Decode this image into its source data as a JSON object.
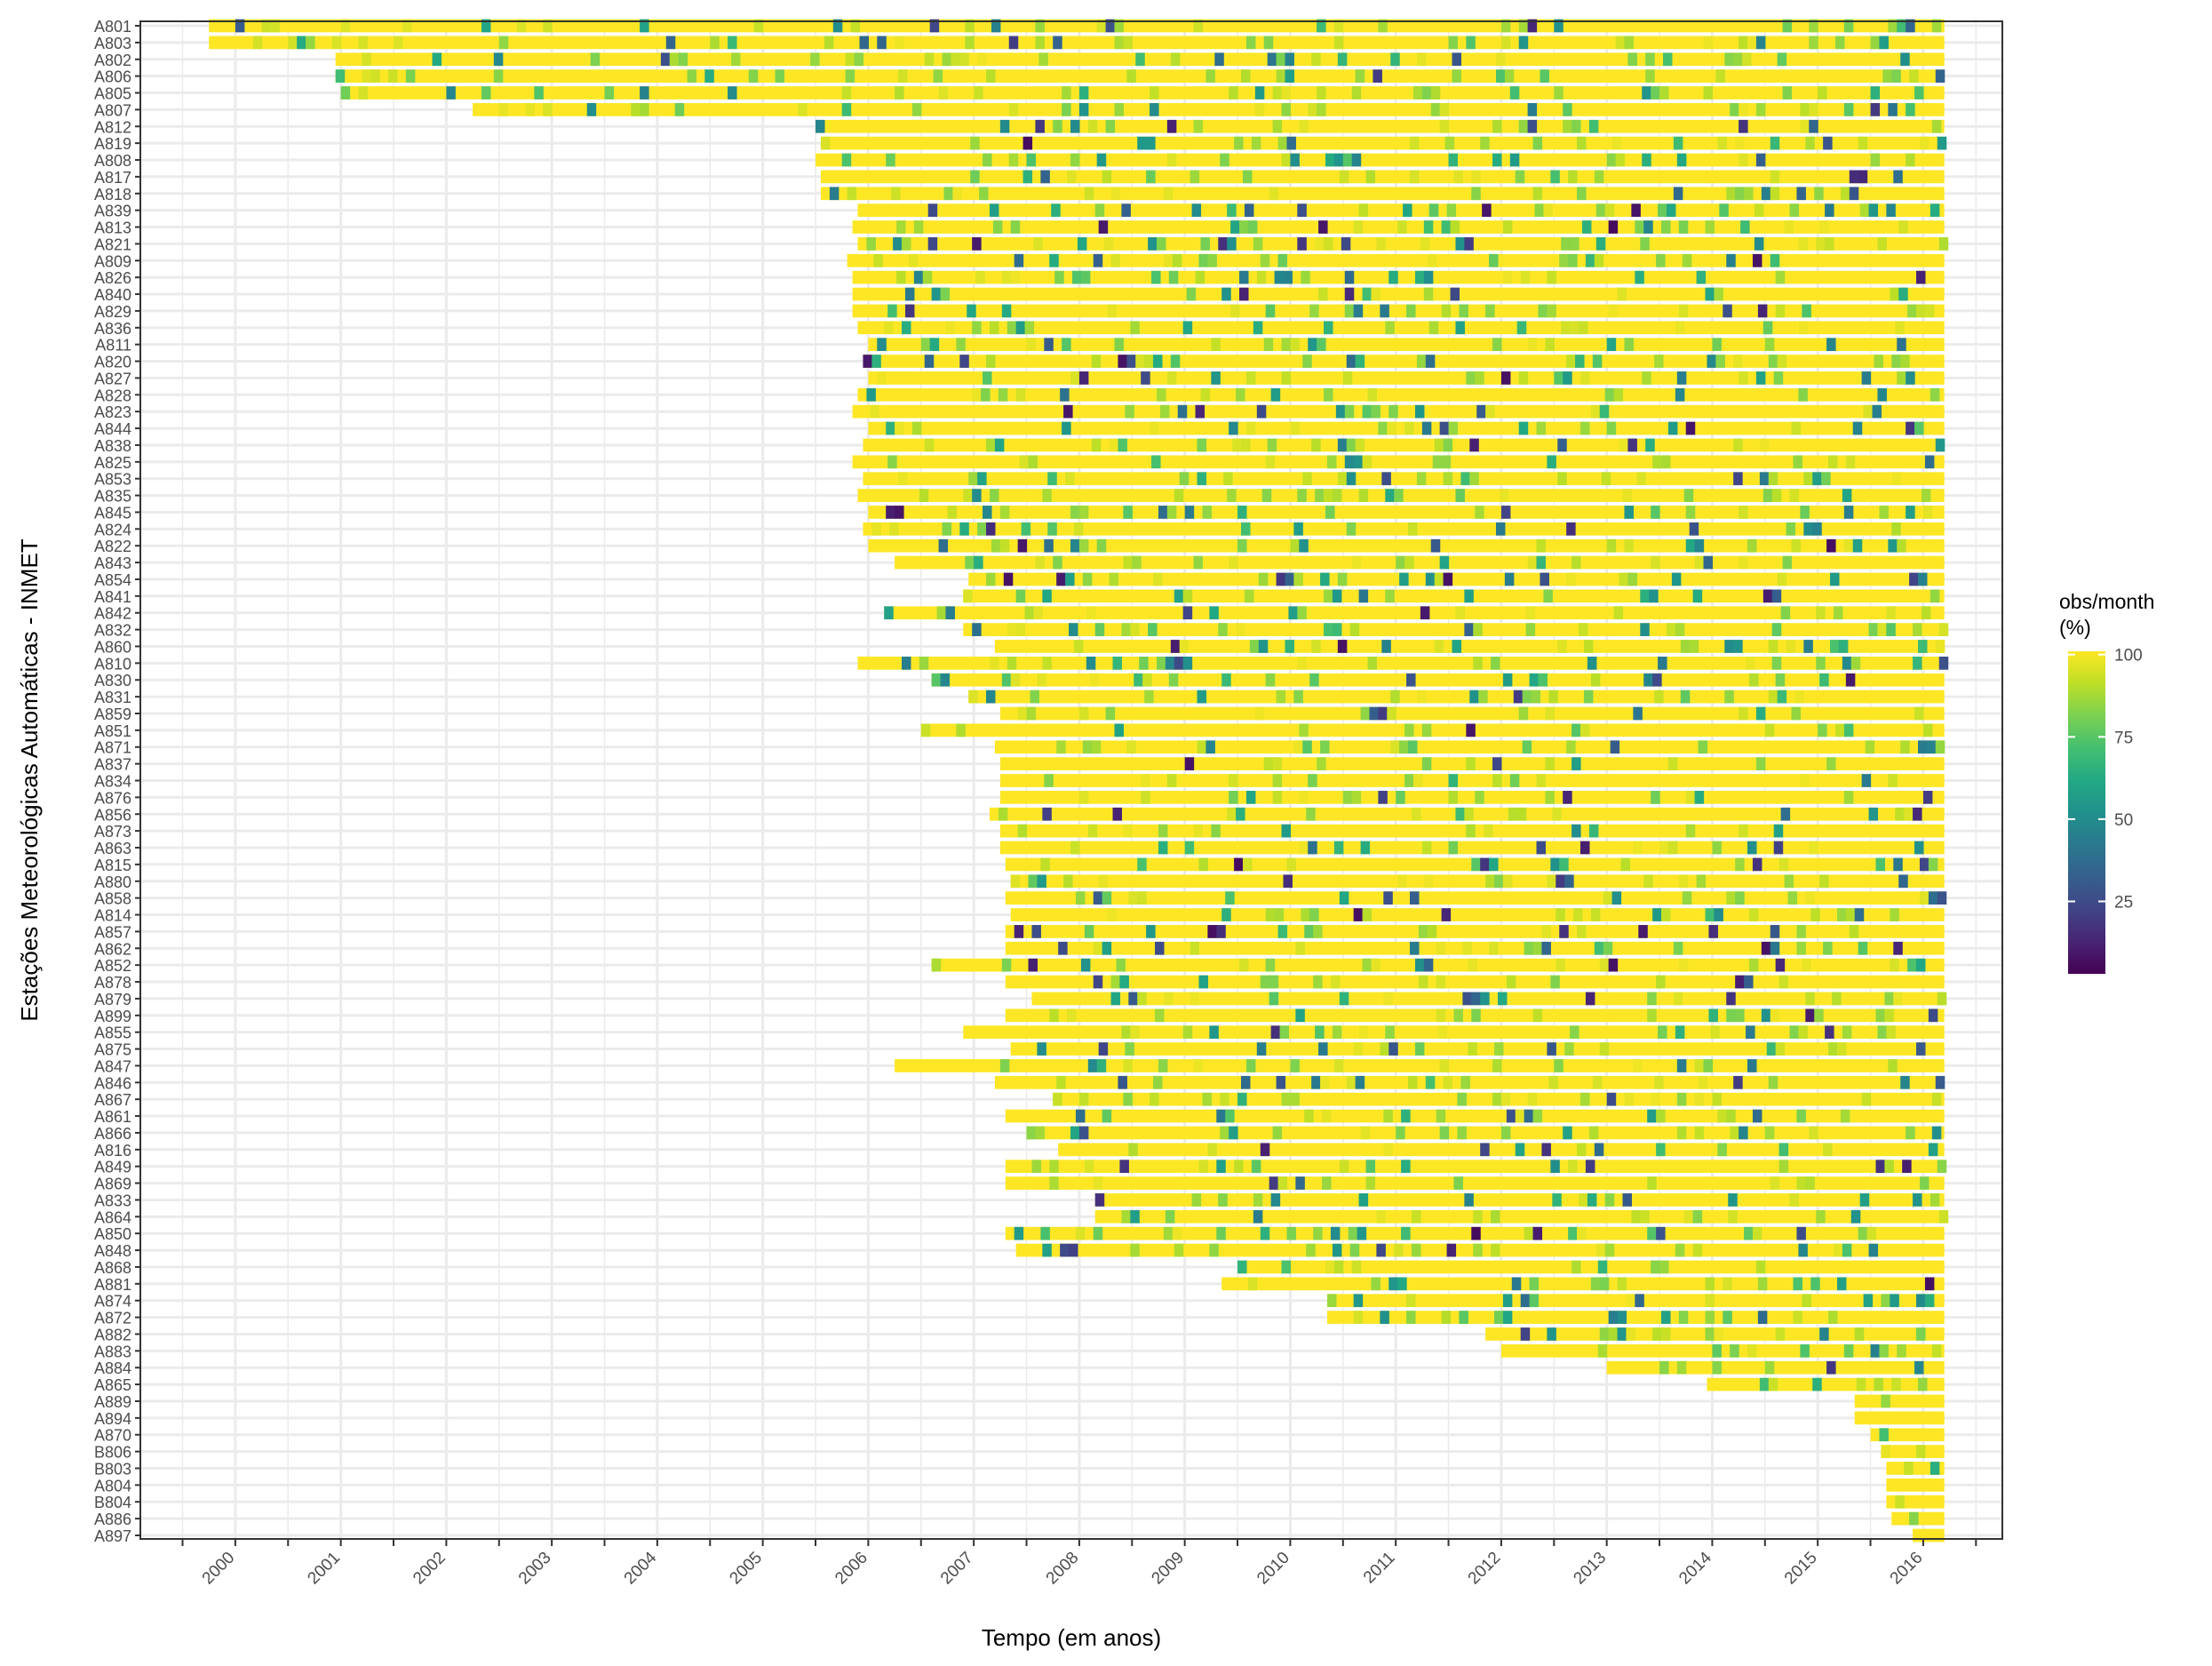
{
  "chart_data": {
    "type": "heatmap",
    "title": "",
    "xlabel": "Tempo (em anos)",
    "ylabel": "Estações Meteorológicas Automáticas - INMET",
    "x_ticks": [
      "2000",
      "2001",
      "2002",
      "2003",
      "2004",
      "2005",
      "2006",
      "2007",
      "2008",
      "2009",
      "2010",
      "2011",
      "2012",
      "2013",
      "2014",
      "2015",
      "2016"
    ],
    "xlim": [
      1999.1,
      2016.75
    ],
    "stations": [
      "A801",
      "A803",
      "A802",
      "A806",
      "A805",
      "A807",
      "A812",
      "A819",
      "A808",
      "A817",
      "A818",
      "A839",
      "A813",
      "A821",
      "A809",
      "A826",
      "A840",
      "A829",
      "A836",
      "A811",
      "A820",
      "A827",
      "A828",
      "A823",
      "A844",
      "A838",
      "A825",
      "A853",
      "A835",
      "A845",
      "A824",
      "A822",
      "A843",
      "A854",
      "A841",
      "A842",
      "A832",
      "A860",
      "A810",
      "A830",
      "A831",
      "A859",
      "A851",
      "A871",
      "A837",
      "A834",
      "A876",
      "A856",
      "A873",
      "A863",
      "A815",
      "A880",
      "A858",
      "A814",
      "A857",
      "A862",
      "A852",
      "A878",
      "A879",
      "A899",
      "A855",
      "A875",
      "A847",
      "A846",
      "A867",
      "A861",
      "A866",
      "A816",
      "A849",
      "A869",
      "A833",
      "A864",
      "A850",
      "A848",
      "A868",
      "A881",
      "A874",
      "A872",
      "A882",
      "A883",
      "A884",
      "A865",
      "A889",
      "A894",
      "A870",
      "B806",
      "B803",
      "A804",
      "B804",
      "A886",
      "A897"
    ],
    "start_years": [
      1999.75,
      1999.75,
      2000.95,
      2000.95,
      2001.0,
      2002.25,
      2005.5,
      2005.55,
      2005.5,
      2005.55,
      2005.55,
      2005.9,
      2005.85,
      2005.9,
      2005.8,
      2005.85,
      2005.85,
      2005.85,
      2005.9,
      2006.0,
      2005.95,
      2006.0,
      2005.9,
      2005.85,
      2006.0,
      2005.95,
      2005.85,
      2005.95,
      2005.9,
      2006.0,
      2005.95,
      2006.0,
      2006.25,
      2006.95,
      2006.9,
      2006.15,
      2006.9,
      2007.2,
      2005.9,
      2006.6,
      2006.95,
      2007.25,
      2006.5,
      2007.2,
      2007.25,
      2007.25,
      2007.25,
      2007.15,
      2007.25,
      2007.25,
      2007.3,
      2007.35,
      2007.3,
      2007.35,
      2007.3,
      2007.3,
      2006.6,
      2007.3,
      2007.55,
      2007.3,
      2006.9,
      2007.35,
      2006.25,
      2007.2,
      2007.75,
      2007.3,
      2007.5,
      2007.8,
      2007.3,
      2007.3,
      2008.15,
      2008.15,
      2007.3,
      2007.4,
      2009.5,
      2009.35,
      2010.35,
      2010.35,
      2011.85,
      2012.0,
      2013.0,
      2013.95,
      2015.35,
      2015.35,
      2015.5,
      2015.6,
      2015.65,
      2015.65,
      2015.65,
      2015.7,
      2015.9
    ],
    "end_year": 2016.2,
    "colorbar": {
      "title": [
        "obs/month",
        "(%)"
      ],
      "ticks": [
        "100",
        "75",
        "50",
        "25"
      ],
      "tick_values": [
        100,
        75,
        50,
        25
      ],
      "range": [
        0,
        100
      ],
      "colormap": "viridis"
    },
    "colors": {
      "high": "#fde725",
      "mid": "#21918c",
      "low": "#440154",
      "grid": "#ebebeb"
    },
    "grid": true,
    "legend_position": "right"
  }
}
